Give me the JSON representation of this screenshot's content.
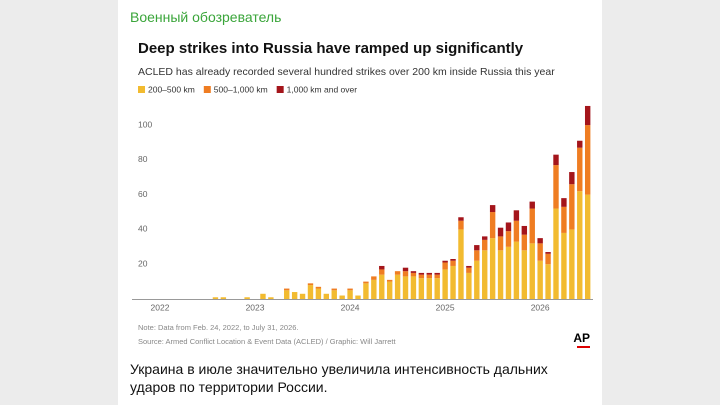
{
  "header": {
    "site": "Военный обозреватель"
  },
  "chart_data": {
    "type": "bar",
    "stacked": true,
    "title": "Deep strikes into Russia have ramped up significantly",
    "subtitle": "ACLED has already recorded several hundred strikes over 200 km inside Russia this year",
    "categories": [
      "2022",
      null,
      null,
      null,
      null,
      null,
      null,
      null,
      null,
      null,
      null,
      null,
      "2023",
      null,
      null,
      null,
      null,
      null,
      null,
      null,
      null,
      null,
      null,
      null,
      "2024",
      null,
      null,
      null,
      null,
      null,
      null,
      null,
      null,
      null,
      null,
      null,
      "2025",
      null,
      null,
      null,
      null,
      null,
      null,
      null,
      null,
      null,
      null,
      null,
      "2026",
      null,
      null,
      null,
      null,
      null,
      null
    ],
    "series": [
      {
        "name": "200–500 km",
        "color": "#f2bb30",
        "values": [
          0,
          0,
          0,
          0,
          0,
          0,
          0,
          1,
          1,
          0,
          0,
          1,
          0,
          3,
          1,
          0,
          5,
          4,
          3,
          8,
          6,
          3,
          5,
          2,
          5,
          2,
          9,
          11,
          14,
          10,
          14,
          13,
          13,
          12,
          12,
          12,
          17,
          19,
          40,
          15,
          22,
          28,
          35,
          28,
          30,
          33,
          28,
          32,
          22,
          20,
          52,
          38,
          40,
          62,
          60
        ]
      },
      {
        "name": "500–1,000 km",
        "color": "#ef7d22",
        "values": [
          0,
          0,
          0,
          0,
          0,
          0,
          0,
          0,
          0,
          0,
          0,
          0,
          0,
          0,
          0,
          0,
          1,
          0,
          0,
          1,
          1,
          0,
          1,
          0,
          1,
          0,
          1,
          2,
          3,
          1,
          2,
          3,
          2,
          2,
          2,
          2,
          4,
          3,
          5,
          3,
          6,
          6,
          15,
          8,
          9,
          12,
          9,
          20,
          10,
          6,
          25,
          15,
          26,
          25,
          40
        ]
      },
      {
        "name": "1,000 km and over",
        "color": "#a4151b",
        "values": [
          0,
          0,
          0,
          0,
          0,
          0,
          0,
          0,
          0,
          0,
          0,
          0,
          0,
          0,
          0,
          0,
          0,
          0,
          0,
          0,
          0,
          0,
          0,
          0,
          0,
          0,
          0,
          0,
          2,
          0,
          0,
          2,
          1,
          1,
          1,
          1,
          1,
          1,
          2,
          1,
          3,
          2,
          4,
          5,
          5,
          6,
          5,
          4,
          3,
          1,
          6,
          5,
          7,
          4,
          11
        ]
      }
    ],
    "ylim": [
      0,
      115
    ],
    "yticks": [
      20,
      40,
      60,
      80,
      100
    ],
    "grid": false,
    "note": "Note: Data from Feb. 24, 2022, to July 31, 2026.",
    "source": "Source: Armed Conflict Location & Event Data (ACLED) / Graphic: Will Jarrett",
    "logo": "AP"
  },
  "caption": "Украина в июле значительно увеличила интенсивность дальних ударов по территории России."
}
